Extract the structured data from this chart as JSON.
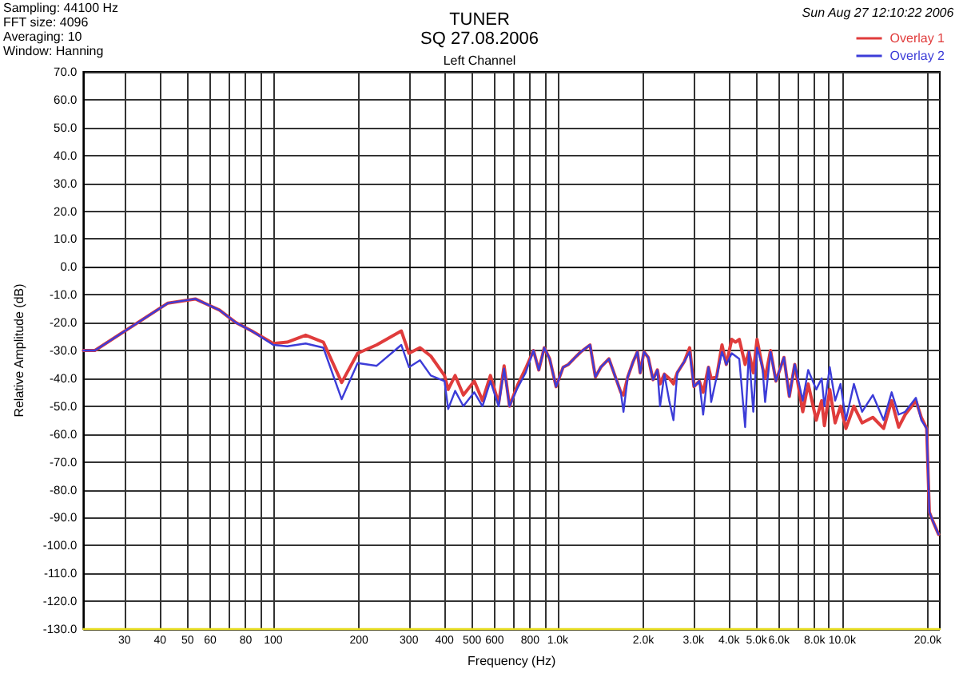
{
  "chart_data": {
    "type": "line",
    "title": "TUNER",
    "subtitle": "SQ 27.08.2006",
    "xlabel": "Frequency (Hz)",
    "ylabel": "Relative Amplitude (dB)",
    "annotations": [
      "Sampling: 44100 Hz",
      "FFT size: 4096",
      "Averaging: 10",
      "Window: Hanning",
      "Sun Aug 27 12:10:22 2006",
      "Left Channel"
    ],
    "log": "x",
    "grid": true,
    "legend": "top right",
    "marker": "none",
    "xlim": [
      21.5,
      22050
    ],
    "ylim": [
      -130,
      70
    ],
    "xticks": [
      30,
      40,
      50,
      60,
      {
        "value": 70,
        "label": null
      },
      80,
      {
        "value": 90,
        "label": null
      },
      100,
      200,
      300,
      400,
      500,
      600,
      {
        "value": 700,
        "label": null
      },
      800,
      {
        "value": 900,
        "label": null
      },
      {
        "value": 1000,
        "label": "1.0k"
      },
      {
        "value": 2000,
        "label": "2.0k"
      },
      {
        "value": 3000,
        "label": "3.0k"
      },
      {
        "value": 4000,
        "label": "4.0k"
      },
      {
        "value": 5000,
        "label": "5.0k"
      },
      {
        "value": 6000,
        "label": "6.0k"
      },
      {
        "value": 7000,
        "label": null
      },
      {
        "value": 8000,
        "label": "8.0k"
      },
      {
        "value": 9000,
        "label": null
      },
      {
        "value": 10000,
        "label": "10.0k"
      },
      {
        "value": 20000,
        "label": "20.0k"
      }
    ],
    "yticks": [
      {
        "value": -130,
        "label": "-130.0"
      },
      {
        "value": -120,
        "label": "-120.0"
      },
      {
        "value": -110,
        "label": "-110.0"
      },
      {
        "value": -100,
        "label": "-100.0"
      },
      {
        "value": -90,
        "label": "-90.0"
      },
      {
        "value": -80,
        "label": "-80.0"
      },
      {
        "value": -70,
        "label": "-70.0"
      },
      {
        "value": -60,
        "label": "-60.0"
      },
      {
        "value": -50,
        "label": "-50.0"
      },
      {
        "value": -40,
        "label": "-40.0"
      },
      {
        "value": -30,
        "label": "-30.0"
      },
      {
        "value": -20,
        "label": "-20.0"
      },
      {
        "value": -10,
        "label": "-10.0"
      },
      {
        "value": 0,
        "label": "0.0"
      },
      {
        "value": 10,
        "label": "10.0"
      },
      {
        "value": 20,
        "label": "20.0"
      },
      {
        "value": 30,
        "label": "30.0"
      },
      {
        "value": 40,
        "label": "40.0"
      },
      {
        "value": 50,
        "label": "50.0"
      },
      {
        "value": 60,
        "label": "60.0"
      },
      {
        "value": 70,
        "label": "70.0"
      }
    ],
    "x": [
      21.5,
      23.6,
      42.6,
      53.2,
      64.7,
      73.9,
      84,
      100,
      112,
      130,
      150,
      174,
      198,
      231,
      282,
      300,
      328,
      358,
      400,
      412,
      436,
      466,
      509,
      544,
      580,
      620,
      648,
      677,
      722,
      771,
      822,
      858,
      897,
      937,
      987,
      1045,
      1091,
      1165,
      1206,
      1299,
      1357,
      1418,
      1514,
      1595,
      1667,
      1703,
      1763,
      1842,
      1906,
      1950,
      2010,
      2081,
      2163,
      2241,
      2290,
      2372,
      2466,
      2553,
      2632,
      2786,
      2910,
      3013,
      3146,
      3246,
      3389,
      3464,
      3620,
      3781,
      3916,
      4092,
      4218,
      4348,
      4560,
      4700,
      4871,
      5021,
      5246,
      5361,
      5601,
      5851,
      6244,
      6521,
      6813,
      7270,
      7596,
      8110,
      8474,
      8662,
      9046,
      9449,
      9870,
      10310,
      11000,
      11750,
      12820,
      13990,
      14930,
      15800,
      16660,
      18170,
      18980,
      19820,
      20260,
      20890,
      21830
    ],
    "series": [
      {
        "name": "Overlay 1",
        "color": "#e03c3c",
        "values": [
          -30,
          -30,
          -13,
          -11.5,
          -15.5,
          -20,
          -23,
          -27.5,
          -27,
          -24.5,
          -27,
          -41.5,
          -31,
          -28,
          -23,
          -31,
          -29,
          -32,
          -39,
          -44,
          -39,
          -46,
          -41,
          -48,
          -39,
          -49,
          -35.5,
          -50,
          -42.5,
          -36.5,
          -30,
          -37,
          -29,
          -33,
          -43,
          -36,
          -35,
          -32,
          -30.5,
          -28,
          -39.5,
          -36,
          -33,
          -39.5,
          -45,
          -46,
          -39.5,
          -34,
          -30.5,
          -38,
          -30.5,
          -32.5,
          -40.5,
          -37,
          -42,
          -38.5,
          -40,
          -42,
          -38,
          -34,
          -29,
          -43,
          -41,
          -45,
          -36,
          -40,
          -39.5,
          -28,
          -35,
          -26,
          -27,
          -26,
          -35,
          -30.5,
          -38,
          -26,
          -36,
          -40,
          -30,
          -41,
          -32.5,
          -46.5,
          -35,
          -52,
          -42,
          -55,
          -48,
          -57,
          -44,
          -56,
          -50,
          -58,
          -50,
          -56,
          -54,
          -58,
          -48,
          -57.5,
          -53,
          -48,
          -54,
          -58,
          -88,
          -91.5,
          -96
        ]
      },
      {
        "name": "Overlay 2",
        "color": "#3c3cd8",
        "values": [
          -30,
          -30,
          -13,
          -11.5,
          -15.5,
          -20,
          -23,
          -28,
          -28.5,
          -27.5,
          -29,
          -47.5,
          -34.5,
          -35.5,
          -28,
          -36,
          -33.5,
          -39,
          -41,
          -51,
          -44.5,
          -50,
          -45,
          -50,
          -41,
          -50,
          -36.5,
          -50,
          -43.5,
          -38,
          -30,
          -37,
          -29,
          -33,
          -43,
          -36,
          -35,
          -32,
          -30.5,
          -28,
          -39.5,
          -36,
          -33,
          -39.5,
          -45,
          -52,
          -39.5,
          -34,
          -30.5,
          -38,
          -30.5,
          -32.5,
          -40.5,
          -37,
          -50,
          -38.5,
          -48,
          -55,
          -38,
          -34,
          -30.5,
          -43,
          -41,
          -53,
          -36,
          -48.5,
          -39.5,
          -30.5,
          -35,
          -31,
          -32,
          -33,
          -57.5,
          -30.5,
          -52,
          -29,
          -36,
          -48.5,
          -30.5,
          -41,
          -32.5,
          -46.5,
          -35,
          -48,
          -37,
          -44,
          -40,
          -50,
          -36,
          -48,
          -42,
          -55,
          -42,
          -52,
          -46,
          -55,
          -45,
          -53,
          -52,
          -47,
          -55,
          -58,
          -88,
          -91.5,
          -96
        ]
      },
      {
        "color": "#e6dc1e",
        "x": [
          21.5,
          22050
        ],
        "values": [
          -130,
          -130
        ]
      }
    ]
  }
}
